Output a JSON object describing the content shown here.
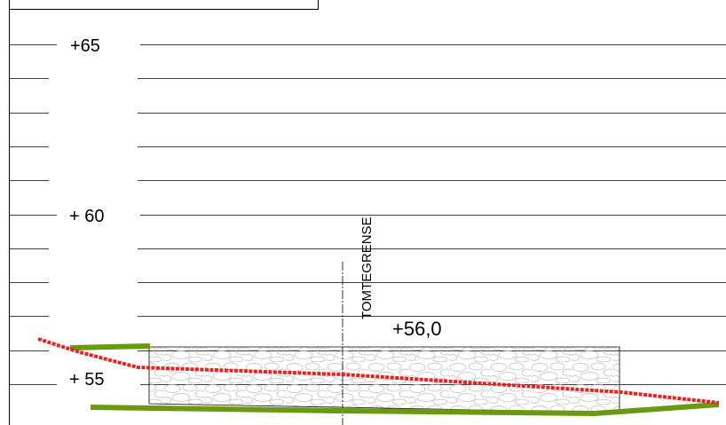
{
  "labels": {
    "elev_65": "+65",
    "elev_60": "+ 60",
    "elev_55": "+ 55",
    "boundary": "TOMTEGRENSE",
    "level": "+56,0"
  },
  "colors": {
    "background": "#ffffff",
    "grid_line": "#000000",
    "terrain_existing": "#e8221f",
    "terrain_new": "#6b9a12",
    "boundary_line": "#000000",
    "fill_hatch": "#bfbfbf"
  }
}
